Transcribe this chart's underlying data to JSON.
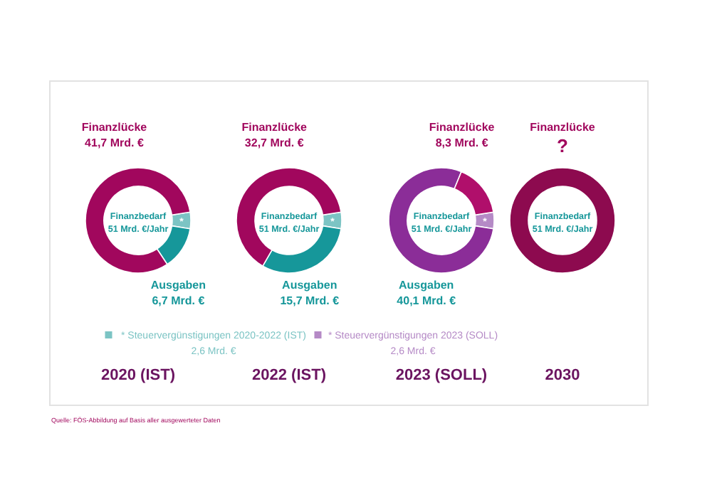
{
  "chart_data": [
    {
      "type": "donut",
      "title": "2020 (IST)",
      "categories": [
        "* Steuervergünstigungen 2020-2022 (IST)",
        "Ausgaben",
        "Finanzlücke"
      ],
      "values": [
        2.6,
        6.7,
        41.7
      ],
      "value_labels": [
        "2,6 Mrd. €",
        "6,7 Mrd. €",
        "41,7 Mrd. €"
      ],
      "colors": [
        "#7cc4c4",
        "#16979a",
        "#a1075d"
      ],
      "annotations": [
        "Finanzbedarf",
        "51 Mrd. €/Jahr",
        "*",
        "Quelle: FÖS-Abbildung auf Basis aller ausgewerteter Daten"
      ]
    },
    {
      "type": "donut",
      "title": "2022 (IST)",
      "categories": [
        null,
        "Ausgaben",
        "Finanzlücke"
      ],
      "values": [
        2.6,
        15.7,
        32.7
      ],
      "value_labels": [
        null,
        "15,7 Mrd. €",
        "32,7 Mrd. €"
      ],
      "colors": [
        "#7cc4c4",
        "#16979a",
        "#a1075d"
      ],
      "annotations": [
        "Finanzbedarf",
        "51 Mrd. €/Jahr",
        "*"
      ]
    },
    {
      "type": "donut",
      "title": "2023 (SOLL)",
      "categories": [
        "* Steuervergünstigungen 2023 (SOLL)",
        "Ausgaben",
        "Finanzlücke"
      ],
      "values": [
        2.6,
        40.1,
        8.3
      ],
      "value_labels": [
        "2,6 Mrd. €",
        "40,1 Mrd. €",
        "8,3 Mrd. €"
      ],
      "colors": [
        "#b58ac6",
        "#8b2d98",
        "#b00f6b"
      ],
      "annotations": [
        "Finanzbedarf",
        "51 Mrd. €/Jahr",
        "*"
      ]
    },
    {
      "type": "donut",
      "title": "2030",
      "categories": [
        "Finanzlücke"
      ],
      "values": [
        100
      ],
      "value_labels": [
        "?"
      ],
      "colors": [
        "#8d0a4f"
      ],
      "annotations": [
        "Finanzbedarf",
        "51 Mrd. €/Jahr"
      ]
    }
  ]
}
